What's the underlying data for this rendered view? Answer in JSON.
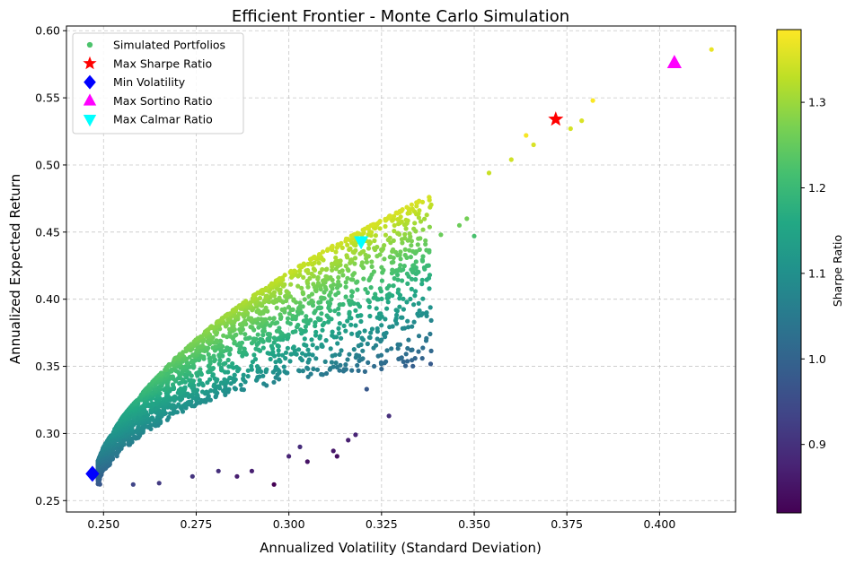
{
  "chart_data": {
    "type": "scatter",
    "title": "Efficient Frontier - Monte Carlo Simulation",
    "xlabel": "Annualized Volatility (Standard Deviation)",
    "ylabel": "Annualized Expected Return",
    "xlim": [
      0.24,
      0.4205
    ],
    "ylim": [
      0.2415,
      0.6035
    ],
    "xticks": [
      0.25,
      0.275,
      0.3,
      0.325,
      0.35,
      0.375,
      0.4
    ],
    "xtick_labels": [
      "0.250",
      "0.275",
      "0.300",
      "0.325",
      "0.350",
      "0.375",
      "0.400"
    ],
    "yticks": [
      0.25,
      0.3,
      0.35,
      0.4,
      0.45,
      0.5,
      0.55,
      0.6
    ],
    "ytick_labels": [
      "0.25",
      "0.30",
      "0.35",
      "0.40",
      "0.45",
      "0.50",
      "0.55",
      "0.60"
    ],
    "grid": true,
    "colorbar": {
      "label": "Sharpe Ratio",
      "colormap": "viridis",
      "range": [
        0.82,
        1.385
      ],
      "ticks": [
        0.9,
        1.0,
        1.1,
        1.2,
        1.3
      ],
      "tick_labels": [
        "0.9",
        "1.0",
        "1.1",
        "1.2",
        "1.3"
      ]
    },
    "legend": {
      "position": "top-left",
      "entries": [
        {
          "label": "Simulated Portfolios",
          "marker": "circle",
          "color": "#4cc36c"
        },
        {
          "label": "Max Sharpe Ratio",
          "marker": "star",
          "color": "#ff0000"
        },
        {
          "label": "Min Volatility",
          "marker": "diamond",
          "color": "#0000ff"
        },
        {
          "label": "Max Sortino Ratio",
          "marker": "triangle-up",
          "color": "#ff00ff"
        },
        {
          "label": "Max Calmar Ratio",
          "marker": "triangle-down",
          "color": "#00ffff"
        }
      ]
    },
    "special_points": [
      {
        "name": "Max Sharpe Ratio",
        "x": 0.372,
        "y": 0.534,
        "marker": "star",
        "color": "#ff0000"
      },
      {
        "name": "Min Volatility",
        "x": 0.247,
        "y": 0.27,
        "marker": "diamond",
        "color": "#0000ff"
      },
      {
        "name": "Max Sortino Ratio",
        "x": 0.404,
        "y": 0.576,
        "marker": "triangle-up",
        "color": "#ff00ff"
      },
      {
        "name": "Max Calmar Ratio",
        "x": 0.3195,
        "y": 0.443,
        "marker": "triangle-down",
        "color": "#00ffff"
      }
    ],
    "simulated_portfolios": {
      "count": 2600,
      "frontier_points": [
        [
          0.2472,
          0.27
        ],
        [
          0.25,
          0.29
        ],
        [
          0.255,
          0.312
        ],
        [
          0.262,
          0.335
        ],
        [
          0.27,
          0.358
        ],
        [
          0.28,
          0.382
        ],
        [
          0.29,
          0.402
        ],
        [
          0.3,
          0.42
        ],
        [
          0.31,
          0.437
        ],
        [
          0.32,
          0.452
        ],
        [
          0.33,
          0.466
        ],
        [
          0.34,
          0.48
        ],
        [
          0.35,
          0.494
        ],
        [
          0.36,
          0.508
        ],
        [
          0.37,
          0.522
        ],
        [
          0.38,
          0.54
        ],
        [
          0.39,
          0.555
        ],
        [
          0.4,
          0.568
        ],
        [
          0.414,
          0.586
        ]
      ],
      "outliers": [
        [
          0.414,
          0.586
        ],
        [
          0.382,
          0.548
        ],
        [
          0.379,
          0.533
        ],
        [
          0.376,
          0.527
        ],
        [
          0.366,
          0.515
        ],
        [
          0.364,
          0.522
        ],
        [
          0.36,
          0.504
        ],
        [
          0.354,
          0.494
        ],
        [
          0.35,
          0.447
        ],
        [
          0.348,
          0.46
        ],
        [
          0.346,
          0.455
        ],
        [
          0.341,
          0.448
        ],
        [
          0.338,
          0.418
        ],
        [
          0.336,
          0.356
        ],
        [
          0.333,
          0.422
        ],
        [
          0.33,
          0.403
        ],
        [
          0.327,
          0.313
        ],
        [
          0.325,
          0.348
        ],
        [
          0.323,
          0.35
        ],
        [
          0.321,
          0.333
        ],
        [
          0.318,
          0.299
        ],
        [
          0.316,
          0.295
        ],
        [
          0.313,
          0.283
        ],
        [
          0.312,
          0.287
        ],
        [
          0.305,
          0.279
        ],
        [
          0.303,
          0.29
        ],
        [
          0.3,
          0.283
        ],
        [
          0.296,
          0.262
        ],
        [
          0.29,
          0.272
        ],
        [
          0.286,
          0.268
        ],
        [
          0.281,
          0.272
        ],
        [
          0.274,
          0.268
        ],
        [
          0.265,
          0.263
        ],
        [
          0.258,
          0.262
        ]
      ]
    }
  }
}
